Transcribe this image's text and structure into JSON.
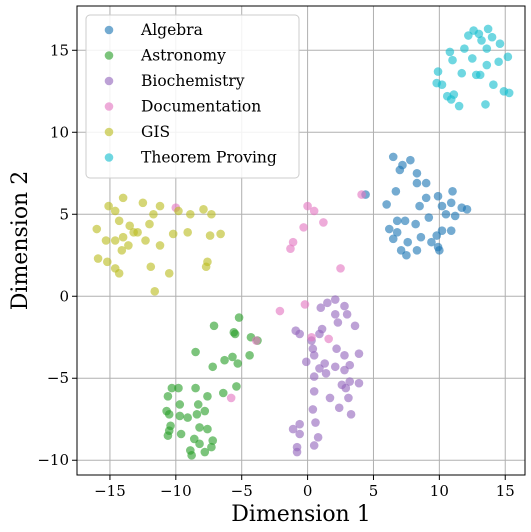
{
  "chart_data": {
    "type": "scatter",
    "title": "",
    "xlabel": "Dimension 1",
    "ylabel": "Dimension 2",
    "xlim": [
      -17.5,
      16.5
    ],
    "ylim": [
      -10.9,
      17.7
    ],
    "xticks": [
      -15,
      -10,
      -5,
      0,
      5,
      10,
      15
    ],
    "yticks": [
      -10,
      -5,
      0,
      5,
      10,
      15
    ],
    "grid": true,
    "legend": "upper-left",
    "series": [
      {
        "name": "Algebra",
        "color": "#1f77b4",
        "points": [
          [
            6.5,
            8.5
          ],
          [
            7.8,
            8.3
          ],
          [
            7.0,
            7.7
          ],
          [
            7.2,
            8.0
          ],
          [
            8.3,
            7.5
          ],
          [
            8.3,
            6.9
          ],
          [
            9.0,
            6.9
          ],
          [
            6.7,
            6.4
          ],
          [
            9.0,
            6.0
          ],
          [
            9.9,
            6.1
          ],
          [
            11.0,
            6.4
          ],
          [
            4.4,
            6.2
          ],
          [
            6.0,
            5.6
          ],
          [
            8.5,
            5.5
          ],
          [
            10.2,
            5.5
          ],
          [
            10.9,
            5.7
          ],
          [
            11.7,
            5.4
          ],
          [
            10.5,
            5.0
          ],
          [
            11.2,
            4.9
          ],
          [
            12.1,
            5.3
          ],
          [
            6.8,
            4.6
          ],
          [
            7.4,
            4.6
          ],
          [
            8.2,
            4.4
          ],
          [
            9.2,
            4.8
          ],
          [
            6.2,
            4.1
          ],
          [
            6.8,
            3.9
          ],
          [
            10.2,
            4.0
          ],
          [
            10.9,
            4.0
          ],
          [
            8.6,
            3.6
          ],
          [
            9.8,
            3.7
          ],
          [
            6.5,
            3.5
          ],
          [
            7.6,
            3.3
          ],
          [
            9.4,
            3.3
          ],
          [
            9.9,
            3.0
          ],
          [
            7.1,
            2.8
          ],
          [
            8.3,
            2.8
          ],
          [
            10.0,
            2.8
          ],
          [
            7.5,
            2.5
          ]
        ]
      },
      {
        "name": "Astronomy",
        "color": "#2ca02c",
        "points": [
          [
            -5.2,
            -1.3
          ],
          [
            -7.1,
            -1.8
          ],
          [
            -5.6,
            -2.2
          ],
          [
            -5.5,
            -2.3
          ],
          [
            -4.3,
            -2.5
          ],
          [
            -3.8,
            -2.7
          ],
          [
            -8.5,
            -3.4
          ],
          [
            -5.7,
            -3.7
          ],
          [
            -4.4,
            -3.6
          ],
          [
            -6.3,
            -3.9
          ],
          [
            -5.3,
            -4.1
          ],
          [
            -7.2,
            -4.3
          ],
          [
            -10.3,
            -5.6
          ],
          [
            -9.8,
            -5.6
          ],
          [
            -8.5,
            -5.6
          ],
          [
            -5.4,
            -5.5
          ],
          [
            -6.4,
            -5.9
          ],
          [
            -10.6,
            -6.1
          ],
          [
            -7.6,
            -6.1
          ],
          [
            -9.7,
            -6.6
          ],
          [
            -8.3,
            -6.6
          ],
          [
            -10.5,
            -7.2
          ],
          [
            -10.7,
            -7.0
          ],
          [
            -8.4,
            -7.2
          ],
          [
            -7.8,
            -7.0
          ],
          [
            -9.7,
            -7.3
          ],
          [
            -9.1,
            -7.4
          ],
          [
            -10.4,
            -7.9
          ],
          [
            -8.2,
            -8.0
          ],
          [
            -10.5,
            -8.2
          ],
          [
            -9.6,
            -8.4
          ],
          [
            -7.6,
            -8.1
          ],
          [
            -10.6,
            -8.5
          ],
          [
            -8.6,
            -8.7
          ],
          [
            -7.2,
            -8.8
          ],
          [
            -8.2,
            -9.0
          ],
          [
            -7.3,
            -9.2
          ],
          [
            -8.9,
            -9.4
          ],
          [
            -7.8,
            -9.5
          ],
          [
            -8.8,
            -9.7
          ]
        ]
      },
      {
        "name": "Biochemistry",
        "color": "#9467bd",
        "points": [
          [
            1.5,
            -0.4
          ],
          [
            2.1,
            -0.2
          ],
          [
            1.0,
            -0.7
          ],
          [
            2.8,
            -0.6
          ],
          [
            2.1,
            -1.1
          ],
          [
            3.0,
            -1.1
          ],
          [
            2.3,
            -1.6
          ],
          [
            3.6,
            -1.8
          ],
          [
            -0.9,
            -2.1
          ],
          [
            -0.6,
            -2.3
          ],
          [
            1.1,
            -2.0
          ],
          [
            0.9,
            -2.3
          ],
          [
            0.3,
            -2.7
          ],
          [
            0.4,
            -3.2
          ],
          [
            0.5,
            -3.6
          ],
          [
            2.2,
            -3.2
          ],
          [
            2.8,
            -3.6
          ],
          [
            3.9,
            -3.5
          ],
          [
            -0.1,
            -4.0
          ],
          [
            1.3,
            -4.1
          ],
          [
            0.9,
            -4.4
          ],
          [
            2.1,
            -4.3
          ],
          [
            1.4,
            -4.7
          ],
          [
            2.8,
            -4.5
          ],
          [
            3.2,
            -4.2
          ],
          [
            0.5,
            -4.9
          ],
          [
            3.2,
            -5.2
          ],
          [
            3.9,
            -5.3
          ],
          [
            2.6,
            -5.4
          ],
          [
            2.9,
            -5.6
          ],
          [
            0.5,
            -5.8
          ],
          [
            1.7,
            -6.2
          ],
          [
            3.1,
            -6.2
          ],
          [
            0.4,
            -6.9
          ],
          [
            2.4,
            -6.8
          ],
          [
            3.3,
            -7.2
          ],
          [
            -0.6,
            -7.8
          ],
          [
            0.6,
            -7.7
          ],
          [
            -1.1,
            -8.1
          ],
          [
            -0.6,
            -8.4
          ],
          [
            0.8,
            -8.6
          ],
          [
            0.5,
            -9.1
          ],
          [
            -0.8,
            -9.2
          ],
          [
            -0.8,
            -9.5
          ]
        ]
      },
      {
        "name": "Documentation",
        "color": "#e377c2",
        "points": [
          [
            -2.1,
            -0.9
          ],
          [
            -0.2,
            -0.5
          ],
          [
            0.0,
            5.5
          ],
          [
            0.5,
            5.2
          ],
          [
            1.2,
            4.5
          ],
          [
            -0.3,
            4.2
          ],
          [
            4.1,
            6.2
          ],
          [
            -1.1,
            3.3
          ],
          [
            -1.3,
            2.9
          ],
          [
            2.5,
            1.7
          ],
          [
            0.3,
            -2.5
          ],
          [
            -3.9,
            -2.7
          ],
          [
            1.6,
            -2.6
          ],
          [
            -10.0,
            5.4
          ],
          [
            -5.8,
            -6.2
          ]
        ]
      },
      {
        "name": "GIS",
        "color": "#bcbd22",
        "points": [
          [
            -14.0,
            6.0
          ],
          [
            -12.5,
            5.7
          ],
          [
            -15.1,
            5.5
          ],
          [
            -14.6,
            5.2
          ],
          [
            -11.2,
            5.5
          ],
          [
            -9.8,
            5.2
          ],
          [
            -11.7,
            5.0
          ],
          [
            -8.9,
            5.0
          ],
          [
            -7.9,
            5.3
          ],
          [
            -7.3,
            5.0
          ],
          [
            -14.3,
            4.6
          ],
          [
            -12.0,
            4.4
          ],
          [
            -16.0,
            4.1
          ],
          [
            -13.5,
            4.3
          ],
          [
            -12.9,
            3.9
          ],
          [
            -14.0,
            3.6
          ],
          [
            -13.2,
            3.9
          ],
          [
            -10.2,
            3.8
          ],
          [
            -9.1,
            3.9
          ],
          [
            -6.6,
            3.8
          ],
          [
            -7.4,
            3.7
          ],
          [
            -15.3,
            3.4
          ],
          [
            -14.6,
            3.4
          ],
          [
            -12.3,
            3.4
          ],
          [
            -11.2,
            3.1
          ],
          [
            -13.6,
            3.1
          ],
          [
            -14.1,
            2.8
          ],
          [
            -15.9,
            2.3
          ],
          [
            -15.2,
            2.1
          ],
          [
            -14.6,
            1.7
          ],
          [
            -14.3,
            1.4
          ],
          [
            -11.9,
            1.8
          ],
          [
            -10.5,
            1.4
          ],
          [
            -7.6,
            2.1
          ],
          [
            -7.7,
            1.8
          ],
          [
            -11.6,
            0.3
          ]
        ]
      },
      {
        "name": "Theorem Proving",
        "color": "#17becf",
        "points": [
          [
            12.6,
            16.2
          ],
          [
            13.0,
            16.0
          ],
          [
            13.7,
            16.3
          ],
          [
            12.2,
            15.9
          ],
          [
            14.0,
            15.8
          ],
          [
            13.2,
            15.6
          ],
          [
            14.6,
            15.4
          ],
          [
            11.9,
            15.1
          ],
          [
            10.8,
            14.9
          ],
          [
            13.6,
            15.1
          ],
          [
            15.2,
            14.6
          ],
          [
            11.0,
            14.4
          ],
          [
            12.5,
            14.5
          ],
          [
            13.6,
            14.1
          ],
          [
            14.5,
            14.3
          ],
          [
            9.9,
            13.7
          ],
          [
            11.7,
            13.6
          ],
          [
            12.8,
            13.5
          ],
          [
            13.1,
            13.5
          ],
          [
            9.8,
            13.0
          ],
          [
            10.2,
            12.9
          ],
          [
            14.1,
            12.9
          ],
          [
            14.9,
            12.5
          ],
          [
            15.3,
            12.4
          ],
          [
            10.6,
            12.2
          ],
          [
            11.1,
            12.3
          ],
          [
            10.9,
            12.0
          ],
          [
            13.5,
            11.7
          ],
          [
            11.5,
            11.6
          ]
        ]
      }
    ]
  }
}
